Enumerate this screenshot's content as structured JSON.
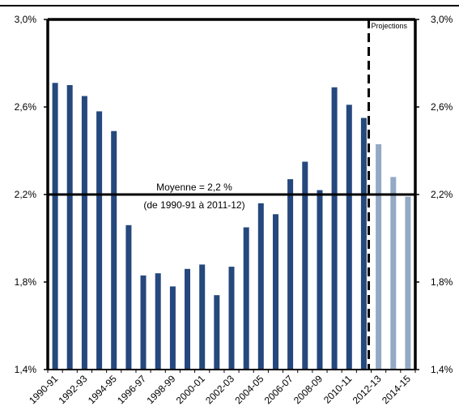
{
  "chart_data": {
    "type": "bar",
    "title": "",
    "xlabel": "",
    "ylabel": "",
    "ylim": [
      1.4,
      3.0
    ],
    "y_ticks": [
      1.4,
      1.8,
      2.2,
      2.6,
      3.0
    ],
    "y_tick_labels": [
      "1,4%",
      "1,8%",
      "2,2%",
      "2,6%",
      "3,0%"
    ],
    "y_axes": "left and right (mirrored)",
    "grid": false,
    "categories": [
      "1990-91",
      "1991-92",
      "1992-93",
      "1993-94",
      "1994-95",
      "1995-96",
      "1996-97",
      "1997-98",
      "1998-99",
      "1999-00",
      "2000-01",
      "2001-02",
      "2002-03",
      "2003-04",
      "2004-05",
      "2005-06",
      "2006-07",
      "2007-08",
      "2008-09",
      "2009-10",
      "2010-11",
      "2011-12",
      "2012-13",
      "2013-14",
      "2014-15"
    ],
    "visible_x_labels": [
      "1990-91",
      "1992-93",
      "1994-95",
      "1996-97",
      "1998-99",
      "2000-01",
      "2002-03",
      "2004-05",
      "2006-07",
      "2008-09",
      "2010-11",
      "2012-13",
      "2014-15"
    ],
    "values": [
      2.71,
      2.7,
      2.65,
      2.58,
      2.49,
      2.06,
      1.83,
      1.84,
      1.78,
      1.86,
      1.88,
      1.74,
      1.87,
      2.05,
      2.16,
      2.11,
      2.27,
      2.35,
      2.22,
      2.69,
      2.61,
      2.55,
      2.43,
      2.28,
      2.19
    ],
    "projection_from": "2012-13",
    "colors": {
      "actual": "#25487d",
      "projection": "#93a9c4"
    },
    "average": {
      "value": 2.2,
      "label_line1": "Moyenne = 2,2 %",
      "label_line2": "(de 1990-91 à 2011-12)"
    },
    "projection_label": "Projections"
  }
}
